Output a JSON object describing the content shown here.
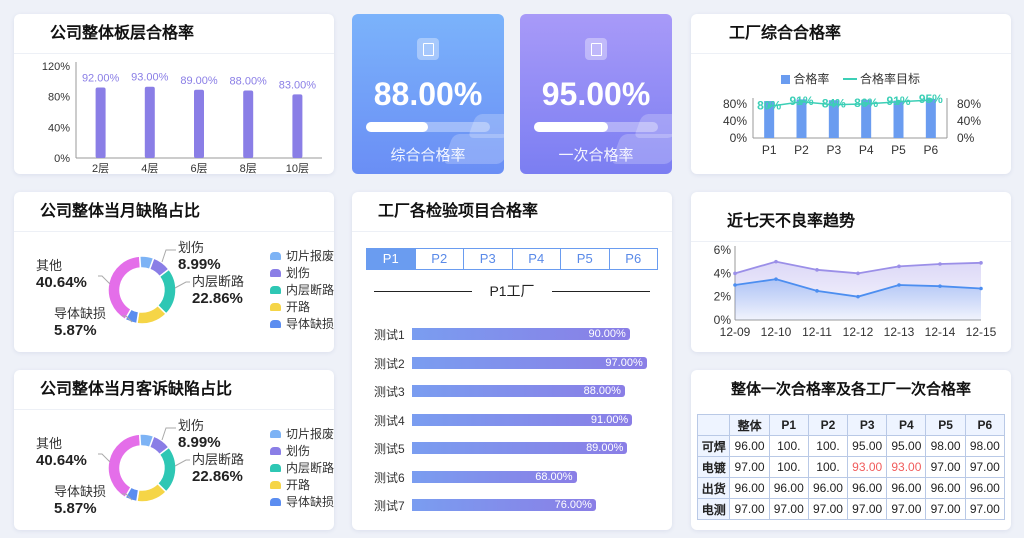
{
  "floor_card": {
    "title": "公司整体板层合格率",
    "chart_data": {
      "type": "bar",
      "categories": [
        "2层",
        "4层",
        "6层",
        "8层",
        "10层"
      ],
      "values": [
        92,
        93,
        89,
        88,
        83
      ],
      "value_labels": [
        "92.00%",
        "93.00%",
        "89.00%",
        "88.00%",
        "83.00%"
      ],
      "y_ticks": [
        "120%",
        "80%",
        "40%",
        "0%"
      ],
      "ylim": [
        0,
        120
      ],
      "bar_color": "#8a7ee6"
    }
  },
  "kpi_1": {
    "value": "88.00%",
    "label": "综合合格率",
    "progress": 0.5,
    "gradient_top": "#7bb3fb",
    "gradient_bottom": "#6a8ef5"
  },
  "kpi_2": {
    "value": "95.00%",
    "label": "一次合格率",
    "progress": 0.6,
    "gradient_top": "#a89af8",
    "gradient_bottom": "#7b7ef2"
  },
  "factory_card": {
    "title": "工厂综合合格率",
    "legend_bar": "合格率",
    "legend_line": "合格率目标",
    "chart_data": {
      "type": "bar",
      "categories": [
        "P1",
        "P2",
        "P3",
        "P4",
        "P5",
        "P6"
      ],
      "series": [
        {
          "name": "合格率",
          "values": [
            88,
            92,
            90,
            91,
            89,
            93
          ]
        },
        {
          "name": "合格率目标",
          "values": [
            80,
            91,
            84,
            86,
            91,
            95
          ],
          "labels": [
            "80%",
            "91%",
            "84%",
            "86%",
            "91%",
            "95%"
          ]
        }
      ],
      "y_ticks_left": [
        "80%",
        "40%",
        "0%"
      ],
      "y_ticks_right": [
        "80%",
        "40%",
        "0%"
      ],
      "ylim": [
        0,
        100
      ],
      "bar_color": "#6a9cf0",
      "line_color": "#3ccfb6"
    }
  },
  "defect_month": {
    "title": "公司整体当月缺陷占比",
    "labels": [
      {
        "name": "划伤",
        "value": "8.99%"
      },
      {
        "name": "内层断路",
        "value": "22.86%"
      },
      {
        "name": "其他",
        "value": "40.64%"
      },
      {
        "name": "导体缺损",
        "value": "5.87%"
      }
    ],
    "legend": [
      "切片报废",
      "划伤",
      "内层断路",
      "开路",
      "导体缺损"
    ],
    "chart_data": {
      "type": "pie",
      "slices": [
        {
          "name": "划伤",
          "value": 8.99,
          "color": "#8a7ee6"
        },
        {
          "name": "内层断路",
          "value": 22.86,
          "color": "#2ec7b4"
        },
        {
          "name": "开路",
          "value": 15.0,
          "color": "#f5d547"
        },
        {
          "name": "导体缺损",
          "value": 5.87,
          "color": "#5b8df0"
        },
        {
          "name": "其他",
          "value": 40.64,
          "color": "#e46ee9"
        },
        {
          "name": "切片报废",
          "value": 6.64,
          "color": "#7db3f5"
        }
      ]
    }
  },
  "defect_complaint": {
    "title": "公司整体当月客诉缺陷占比",
    "labels": [
      {
        "name": "划伤",
        "value": "8.99%"
      },
      {
        "name": "内层断路",
        "value": "22.86%"
      },
      {
        "name": "其他",
        "value": "40.64%"
      },
      {
        "name": "导体缺损",
        "value": "5.87%"
      }
    ],
    "legend": [
      "切片报废",
      "划伤",
      "内层断路",
      "开路",
      "导体缺损"
    ],
    "chart_data": {
      "type": "pie",
      "slices": [
        {
          "name": "划伤",
          "value": 8.99,
          "color": "#8a7ee6"
        },
        {
          "name": "内层断路",
          "value": 22.86,
          "color": "#2ec7b4"
        },
        {
          "name": "开路",
          "value": 15.0,
          "color": "#f5d547"
        },
        {
          "name": "导体缺损",
          "value": 5.87,
          "color": "#5b8df0"
        },
        {
          "name": "其他",
          "value": 40.64,
          "color": "#e46ee9"
        },
        {
          "name": "切片报废",
          "value": 6.64,
          "color": "#7db3f5"
        }
      ]
    }
  },
  "inspection_card": {
    "title": "工厂各检验项目合格率",
    "tabs": [
      "P1",
      "P2",
      "P3",
      "P4",
      "P5",
      "P6"
    ],
    "active_tab": "P1",
    "section_title": "P1工厂",
    "chart_data": {
      "type": "bar",
      "orientation": "horizontal",
      "categories": [
        "测试1",
        "测试2",
        "测试3",
        "测试4",
        "测试5",
        "测试6",
        "测试7"
      ],
      "values": [
        90,
        97,
        88,
        91,
        89,
        68,
        76
      ],
      "value_labels": [
        "90.00%",
        "97.00%",
        "88.00%",
        "91.00%",
        "89.00%",
        "68.00%",
        "76.00%"
      ]
    }
  },
  "trend_card": {
    "title": "近七天不良率趋势",
    "chart_data": {
      "type": "area",
      "x": [
        "12-09",
        "12-10",
        "12-11",
        "12-12",
        "12-13",
        "12-14",
        "12-15"
      ],
      "series": [
        {
          "values": [
            4.0,
            5.0,
            4.3,
            4.0,
            4.6,
            4.8,
            4.9
          ],
          "color": "#9b8fe8"
        },
        {
          "values": [
            3.0,
            3.5,
            2.5,
            2.0,
            3.0,
            2.9,
            2.7
          ],
          "color": "#4c8ef0"
        }
      ],
      "y_ticks": [
        "6%",
        "4%",
        "2%",
        "0%"
      ],
      "ylim": [
        0,
        6
      ]
    }
  },
  "table_card": {
    "title": "整体一次合格率及各工厂一次合格率",
    "header": [
      "",
      "整体",
      "P1",
      "P2",
      "P3",
      "P4",
      "P5",
      "P6"
    ],
    "rows": [
      [
        "可焊",
        "96.00",
        "100.",
        "100.",
        "95.00",
        "95.00",
        "98.00",
        "98.00"
      ],
      [
        "电镀",
        "97.00",
        "100.",
        "100.",
        "93.00",
        "93.00",
        "97.00",
        "97.00"
      ],
      [
        "出货",
        "96.00",
        "96.00",
        "96.00",
        "96.00",
        "96.00",
        "96.00",
        "96.00"
      ],
      [
        "电测",
        "97.00",
        "97.00",
        "97.00",
        "97.00",
        "97.00",
        "97.00",
        "97.00"
      ]
    ],
    "highlight_color": "#f15c5c"
  }
}
